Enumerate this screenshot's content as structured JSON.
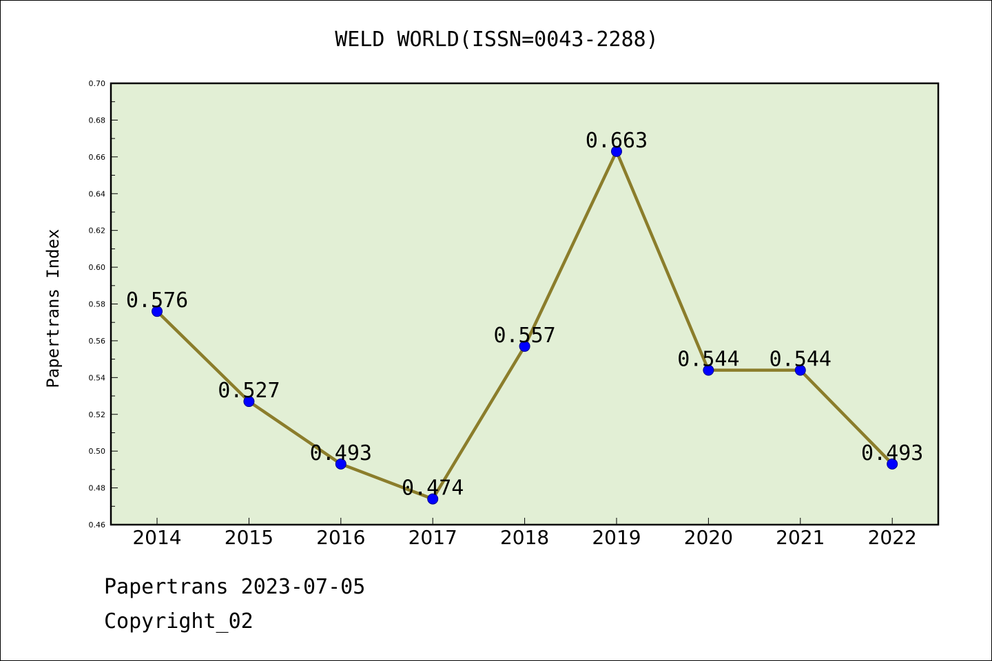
{
  "chart_data": {
    "type": "line",
    "title": "WELD WORLD(ISSN=0043-2288)",
    "xlabel": "",
    "ylabel": "Papertrans Index",
    "categories": [
      "2014",
      "2015",
      "2016",
      "2017",
      "2018",
      "2019",
      "2020",
      "2021",
      "2022"
    ],
    "values": [
      0.576,
      0.527,
      0.493,
      0.474,
      0.557,
      0.663,
      0.544,
      0.544,
      0.493
    ],
    "data_labels": [
      "0.576",
      "0.527",
      "0.493",
      "0.474",
      "0.557",
      "0.663",
      "0.544",
      "0.544",
      "0.493"
    ],
    "ylim": [
      0.46,
      0.7
    ],
    "yticks": [
      "0.46",
      "0.48",
      "0.50",
      "0.52",
      "0.54",
      "0.56",
      "0.58",
      "0.60",
      "0.62",
      "0.64",
      "0.66",
      "0.68",
      "0.70"
    ],
    "grid": false,
    "colors": {
      "plot_background": "#e2efd5",
      "line": "#8b7d2b",
      "marker": "#0000ff"
    }
  },
  "footer": {
    "line1": "Papertrans 2023-07-05",
    "line2": "Copyright_02"
  }
}
